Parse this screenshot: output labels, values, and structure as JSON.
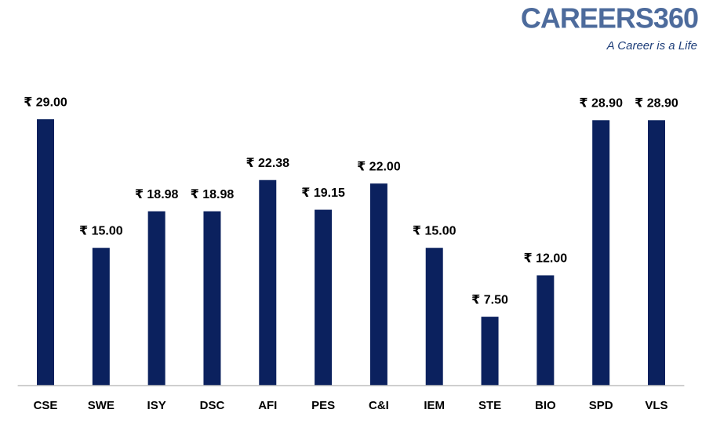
{
  "logo": {
    "name": "CAREERS360",
    "tagline": "A Career is a Life"
  },
  "chart_data": {
    "type": "bar",
    "categories": [
      "CSE",
      "SWE",
      "ISY",
      "DSC",
      "AFI",
      "PES",
      "C&I",
      "IEM",
      "STE",
      "BIO",
      "SPD",
      "VLS"
    ],
    "values": [
      29,
      15,
      18.98,
      18.98,
      22.38,
      19.15,
      22,
      15,
      7.5,
      12,
      28.9,
      28.9
    ],
    "value_labels": [
      "₹ 29.00",
      "₹ 15.00",
      "₹ 18.98",
      "₹ 18.98",
      "₹ 22.38",
      "₹ 19.15",
      "₹ 22.00",
      "₹ 15.00",
      "₹ 7.50",
      "₹ 12.00",
      "₹ 28.90",
      "₹ 28.90"
    ],
    "color": "#0b215e",
    "ylim": [
      0,
      32
    ]
  }
}
